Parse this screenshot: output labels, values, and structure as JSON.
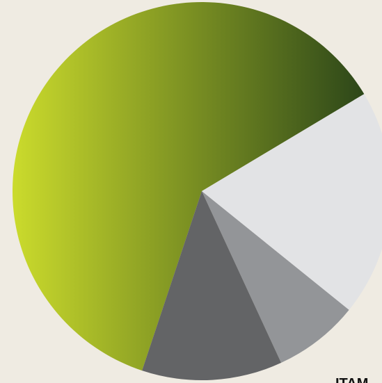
{
  "chart_data": {
    "type": "pie",
    "values": [
      61.3,
      19.4,
      7.3,
      12.0
    ],
    "colors": [
      [
        "#cbdb2c",
        "#2d4719"
      ],
      "#e2e3e5",
      "#939598",
      "#636466"
    ],
    "annotation": "ITAM"
  }
}
